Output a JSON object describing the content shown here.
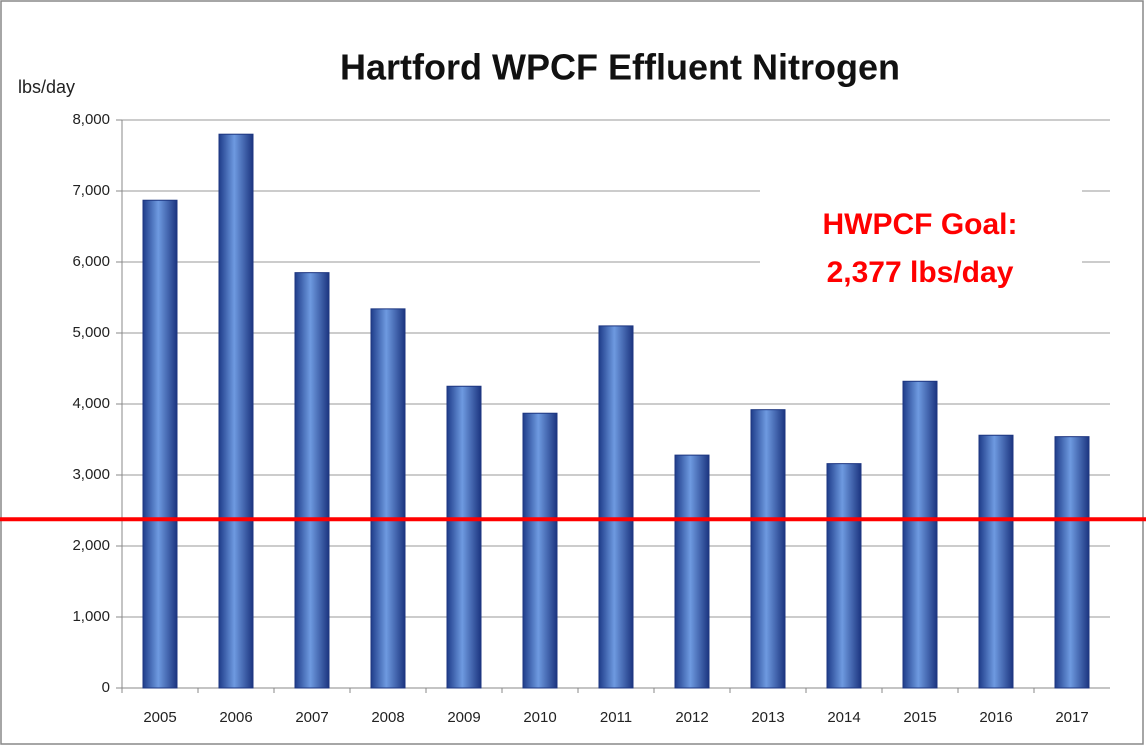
{
  "chart_data": {
    "type": "bar",
    "title": "Hartford WPCF Effluent Nitrogen",
    "y_label": "lbs/day",
    "categories": [
      "2005",
      "2006",
      "2007",
      "2008",
      "2009",
      "2010",
      "2011",
      "2012",
      "2013",
      "2014",
      "2015",
      "2016",
      "2017"
    ],
    "values": [
      6870,
      7800,
      5850,
      5340,
      4250,
      3870,
      5100,
      3280,
      3920,
      3160,
      4320,
      3560,
      3540
    ],
    "color": "#4f81d0",
    "ylim": [
      0,
      8000
    ],
    "yticks": [
      0,
      {
        "value": 1000,
        "label": "1,000"
      },
      {
        "value": 2000,
        "label": "2,000"
      },
      {
        "value": 3000,
        "label": "3,000"
      },
      {
        "value": 4000,
        "label": "4,000"
      },
      {
        "value": 5000,
        "label": "5,000"
      },
      {
        "value": 6000,
        "label": "6,000"
      },
      {
        "value": 7000,
        "label": "7,000"
      },
      {
        "value": 8000,
        "label": "8,000"
      }
    ],
    "grid": true,
    "goal": {
      "value": 2377,
      "color": "#ff0000",
      "label": [
        "HWPCF Goal:",
        "2,377 lbs/day"
      ]
    }
  }
}
